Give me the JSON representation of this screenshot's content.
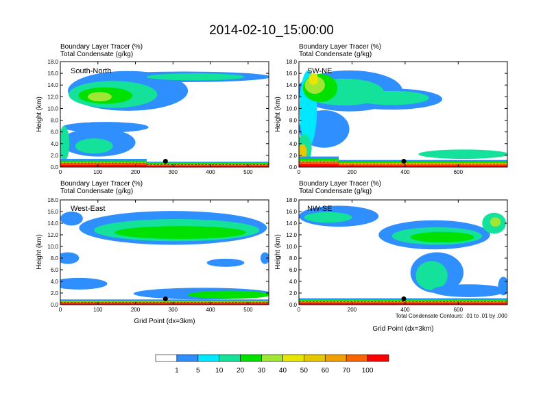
{
  "figure": {
    "title": "2014-02-10_15:00:00",
    "xlabel": "Grid Point (dx=3km)",
    "ylabel": "Height (km)",
    "header_line1": "Boundary Layer Tracer   (%)",
    "header_line2": "Total Condensate   (g/kg)",
    "contour_note": "Total Condensate Contours: .01 to .01 by .000"
  },
  "colors": {
    "levels": [
      "#ffffff",
      "#2f8fff",
      "#00e8ff",
      "#14e19a",
      "#00e100",
      "#a0e632",
      "#e6e600",
      "#e6c800",
      "#f0a000",
      "#fa6400",
      "#ff0000"
    ],
    "contour": "#000000",
    "marker": "#000000"
  },
  "colorbar": {
    "labels": [
      "1",
      "5",
      "10",
      "20",
      "30",
      "40",
      "50",
      "60",
      "70",
      "100"
    ]
  },
  "chart_data": [
    {
      "type": "heatmap",
      "label": "South-North",
      "xlabel": "",
      "ylabel": "Height (km)",
      "xlim": [
        0,
        555
      ],
      "ylim": [
        0,
        18
      ],
      "xticks": [
        "0",
        "100",
        "200",
        "300",
        "400",
        "500"
      ],
      "yticks": [
        "0.0",
        "2.0",
        "4.0",
        "6.0",
        "8.0",
        "10.0",
        "12.0",
        "14.0",
        "16.0",
        "18.0"
      ],
      "marker": {
        "x": 280,
        "y": 1.0
      },
      "blobs": [
        {
          "x": 180,
          "y": 13.0,
          "rx": 160,
          "ry": 3.4,
          "lvl": 1
        },
        {
          "x": 330,
          "y": 15.4,
          "rx": 230,
          "ry": 0.9,
          "lvl": 1
        },
        {
          "x": 140,
          "y": 12.4,
          "rx": 118,
          "ry": 2.3,
          "lvl": 3
        },
        {
          "x": 360,
          "y": 15.4,
          "rx": 130,
          "ry": 0.6,
          "lvl": 3
        },
        {
          "x": 120,
          "y": 12.2,
          "rx": 72,
          "ry": 1.4,
          "lvl": 4
        },
        {
          "x": 105,
          "y": 12.0,
          "rx": 32,
          "ry": 0.8,
          "lvl": 5
        },
        {
          "x": 120,
          "y": 6.8,
          "rx": 115,
          "ry": 0.9,
          "lvl": 1
        },
        {
          "x": 100,
          "y": 4.2,
          "rx": 100,
          "ry": 2.4,
          "lvl": 1
        },
        {
          "x": 90,
          "y": 3.6,
          "rx": 50,
          "ry": 1.3,
          "lvl": 3
        },
        {
          "x": 10,
          "y": 4.0,
          "rx": 14,
          "ry": 3.0,
          "lvl": 3
        }
      ],
      "surface": [
        {
          "from": 0,
          "to": 230,
          "top": 1.4,
          "hot": 0.7
        },
        {
          "from": 230,
          "to": 555,
          "top": 0.9,
          "hot": 0.4
        }
      ]
    },
    {
      "type": "heatmap",
      "label": "SW-NE",
      "xlabel": "",
      "ylabel": "Height (km)",
      "xlim": [
        0,
        785
      ],
      "ylim": [
        0,
        18
      ],
      "xticks": [
        "0",
        "200",
        "400",
        "600"
      ],
      "yticks": [
        "0.0",
        "2.0",
        "4.0",
        "6.0",
        "8.0",
        "10.0",
        "12.0",
        "14.0",
        "16.0",
        "18.0"
      ],
      "marker": {
        "x": 395,
        "y": 1.0
      },
      "blobs": [
        {
          "x": 190,
          "y": 13.0,
          "rx": 200,
          "ry": 3.5,
          "lvl": 1
        },
        {
          "x": 350,
          "y": 11.6,
          "rx": 190,
          "ry": 1.8,
          "lvl": 1
        },
        {
          "x": 95,
          "y": 6.5,
          "rx": 95,
          "ry": 3.2,
          "lvl": 1
        },
        {
          "x": 35,
          "y": 10.0,
          "rx": 33,
          "ry": 6.5,
          "lvl": 2
        },
        {
          "x": 170,
          "y": 12.8,
          "rx": 150,
          "ry": 2.3,
          "lvl": 3
        },
        {
          "x": 350,
          "y": 11.8,
          "rx": 140,
          "ry": 1.2,
          "lvl": 3
        },
        {
          "x": 80,
          "y": 13.5,
          "rx": 65,
          "ry": 2.4,
          "lvl": 4
        },
        {
          "x": 60,
          "y": 14.0,
          "rx": 38,
          "ry": 1.5,
          "lvl": 5
        },
        {
          "x": 55,
          "y": 15.0,
          "rx": 18,
          "ry": 1.0,
          "lvl": 6
        },
        {
          "x": 20,
          "y": 3.2,
          "rx": 28,
          "ry": 2.4,
          "lvl": 3
        },
        {
          "x": 14,
          "y": 2.6,
          "rx": 16,
          "ry": 1.3,
          "lvl": 7
        },
        {
          "x": 620,
          "y": 2.2,
          "rx": 170,
          "ry": 0.8,
          "lvl": 3
        }
      ],
      "surface": [
        {
          "from": 0,
          "to": 150,
          "top": 1.8,
          "hot": 0.9
        },
        {
          "from": 150,
          "to": 785,
          "top": 1.2,
          "hot": 0.5
        }
      ]
    },
    {
      "type": "heatmap",
      "label": "West-East",
      "xlabel": "Grid Point (dx=3km)",
      "ylabel": "Height (km)",
      "xlim": [
        0,
        555
      ],
      "ylim": [
        0,
        18
      ],
      "xticks": [
        "0",
        "100",
        "200",
        "300",
        "400",
        "500"
      ],
      "yticks": [
        "0.0",
        "2.0",
        "4.0",
        "6.0",
        "8.0",
        "10.0",
        "12.0",
        "14.0",
        "16.0",
        "18.0"
      ],
      "marker": {
        "x": 280,
        "y": 1.0
      },
      "blobs": [
        {
          "x": 300,
          "y": 13.2,
          "rx": 250,
          "ry": 2.9,
          "lvl": 1
        },
        {
          "x": 310,
          "y": 12.8,
          "rx": 220,
          "ry": 1.9,
          "lvl": 3
        },
        {
          "x": 320,
          "y": 12.4,
          "rx": 175,
          "ry": 1.1,
          "lvl": 4
        },
        {
          "x": 30,
          "y": 14.8,
          "rx": 30,
          "ry": 1.2,
          "lvl": 1
        },
        {
          "x": 20,
          "y": 8.0,
          "rx": 30,
          "ry": 1.0,
          "lvl": 1
        },
        {
          "x": 440,
          "y": 7.2,
          "rx": 50,
          "ry": 0.7,
          "lvl": 1
        },
        {
          "x": 545,
          "y": 8.0,
          "rx": 12,
          "ry": 1.0,
          "lvl": 1
        },
        {
          "x": 50,
          "y": 3.6,
          "rx": 75,
          "ry": 1.0,
          "lvl": 1
        },
        {
          "x": 380,
          "y": 1.9,
          "rx": 185,
          "ry": 1.0,
          "lvl": 1
        },
        {
          "x": 450,
          "y": 1.7,
          "rx": 110,
          "ry": 0.7,
          "lvl": 4
        }
      ],
      "surface": [
        {
          "from": 0,
          "to": 555,
          "top": 0.9,
          "hot": 0.4
        }
      ]
    },
    {
      "type": "heatmap",
      "label": "NW-SE",
      "xlabel": "Grid Point (dx=3km)",
      "ylabel": "Height (km)",
      "xlim": [
        0,
        785
      ],
      "ylim": [
        0,
        18
      ],
      "xticks": [
        "0",
        "200",
        "400",
        "600"
      ],
      "yticks": [
        "0.0",
        "2.0",
        "4.0",
        "6.0",
        "8.0",
        "10.0",
        "12.0",
        "14.0",
        "16.0",
        "18.0"
      ],
      "marker": {
        "x": 395,
        "y": 1.0
      },
      "blobs": [
        {
          "x": 150,
          "y": 15.2,
          "rx": 150,
          "ry": 1.8,
          "lvl": 1
        },
        {
          "x": 510,
          "y": 12.0,
          "rx": 210,
          "ry": 2.5,
          "lvl": 1
        },
        {
          "x": 520,
          "y": 11.8,
          "rx": 170,
          "ry": 1.5,
          "lvl": 3
        },
        {
          "x": 540,
          "y": 11.6,
          "rx": 120,
          "ry": 0.9,
          "lvl": 4
        },
        {
          "x": 110,
          "y": 15.0,
          "rx": 90,
          "ry": 0.9,
          "lvl": 3
        },
        {
          "x": 735,
          "y": 14.0,
          "rx": 45,
          "ry": 1.8,
          "lvl": 3
        },
        {
          "x": 740,
          "y": 14.2,
          "rx": 20,
          "ry": 0.8,
          "lvl": 5
        },
        {
          "x": 520,
          "y": 5.5,
          "rx": 100,
          "ry": 3.5,
          "lvl": 1
        },
        {
          "x": 500,
          "y": 5.0,
          "rx": 60,
          "ry": 2.5,
          "lvl": 3
        },
        {
          "x": 640,
          "y": 2.4,
          "rx": 140,
          "ry": 1.1,
          "lvl": 1
        },
        {
          "x": 770,
          "y": 3.2,
          "rx": 20,
          "ry": 1.6,
          "lvl": 1
        }
      ],
      "surface": [
        {
          "from": 0,
          "to": 785,
          "top": 1.1,
          "hot": 0.5
        }
      ]
    }
  ]
}
